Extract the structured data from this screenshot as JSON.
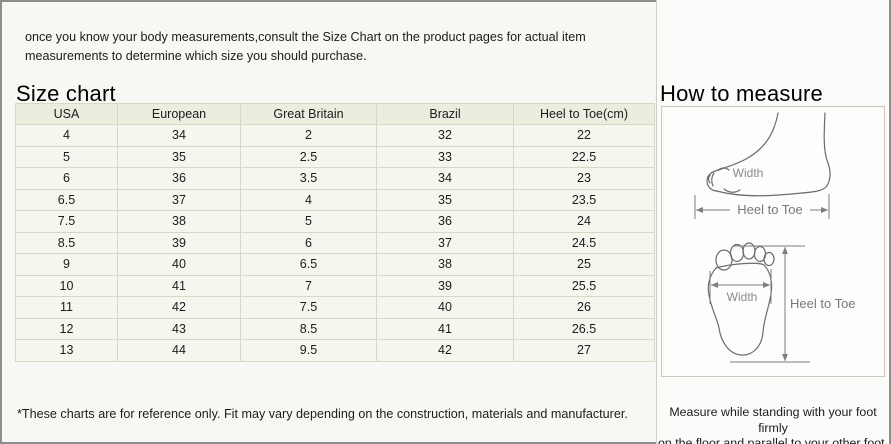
{
  "intro_text": "once you know your body measurements,consult the Size Chart on the product pages for actual item measurements to determine which size you should purchase.",
  "size_chart": {
    "title": "Size chart",
    "columns": [
      "USA",
      "European",
      "Great Britain",
      "Brazil",
      "Heel to Toe(cm)"
    ],
    "rows": [
      [
        "4",
        "34",
        "2",
        "32",
        "22"
      ],
      [
        "5",
        "35",
        "2.5",
        "33",
        "22.5"
      ],
      [
        "6",
        "36",
        "3.5",
        "34",
        "23"
      ],
      [
        "6.5",
        "37",
        "4",
        "35",
        "23.5"
      ],
      [
        "7.5",
        "38",
        "5",
        "36",
        "24"
      ],
      [
        "8.5",
        "39",
        "6",
        "37",
        "24.5"
      ],
      [
        "9",
        "40",
        "6.5",
        "38",
        "25"
      ],
      [
        "10",
        "41",
        "7",
        "39",
        "25.5"
      ],
      [
        "11",
        "42",
        "7.5",
        "40",
        "26"
      ],
      [
        "12",
        "43",
        "8.5",
        "41",
        "26.5"
      ],
      [
        "13",
        "44",
        "9.5",
        "42",
        "27"
      ]
    ],
    "footnote": "*These charts are for reference only. Fit may vary depending on the construction, materials and manufacturer."
  },
  "how_to_measure": {
    "title": "How to measure",
    "side_view": {
      "width_label": "Width",
      "heel_to_toe_label": "Heel to Toe"
    },
    "top_view": {
      "width_label": "Width",
      "heel_to_toe_label": "Heel to Toe"
    },
    "note_line1": "Measure while standing with your foot firmly",
    "note_line2": "on the floor and parallel to your other foot."
  },
  "colors": {
    "frame_border": "#8e8e8e",
    "panel_divider": "#cfcfc6",
    "table_header_bg": "#ececdf",
    "table_row_bg": "#f6f6ee",
    "table_border": "#d8d8c6",
    "diagram_stroke": "#6b6b6b",
    "dimension_text": "#787878"
  }
}
